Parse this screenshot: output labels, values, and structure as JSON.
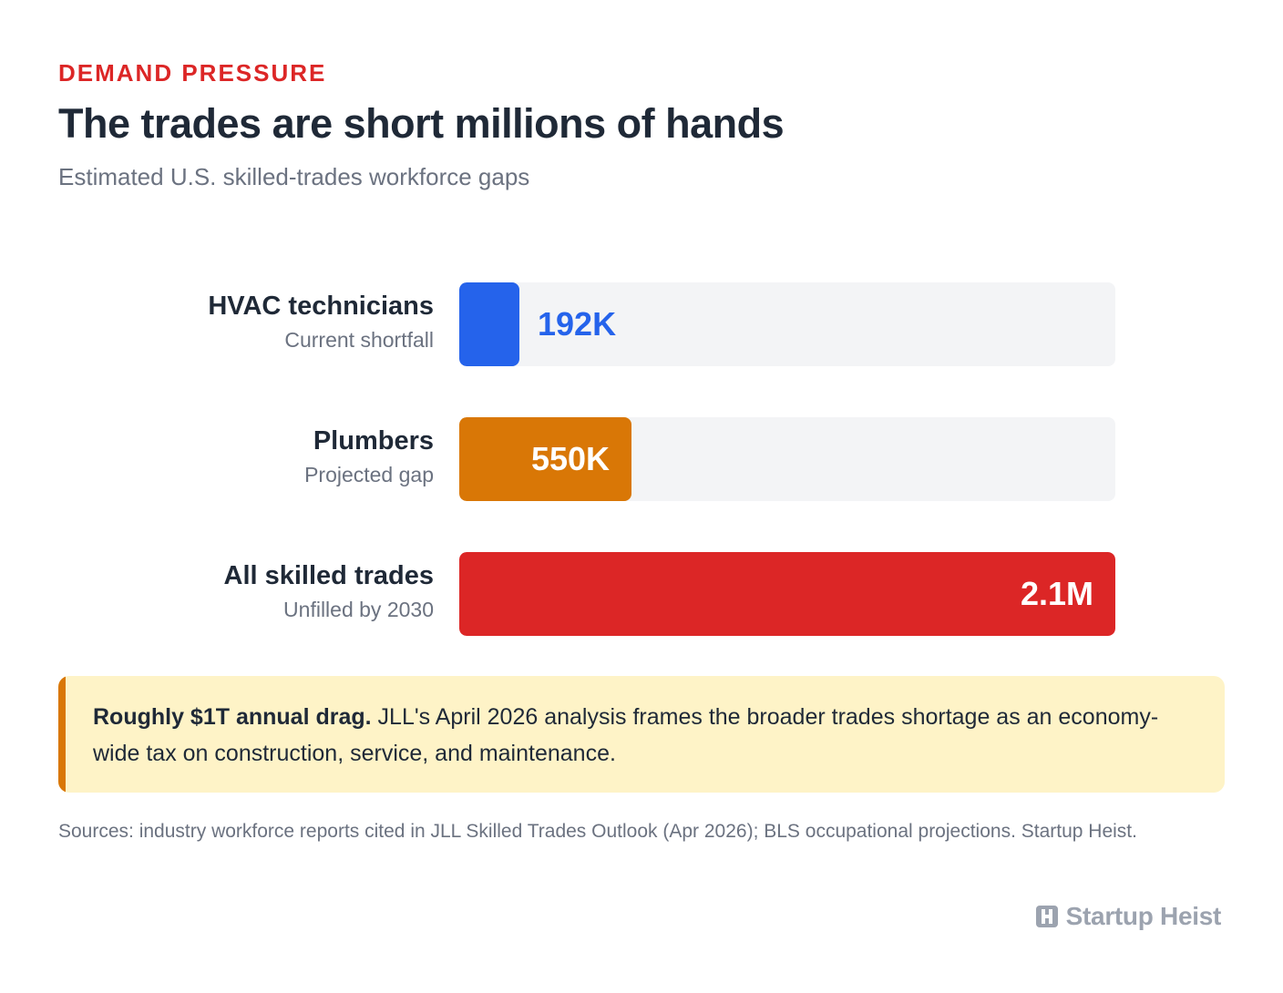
{
  "header": {
    "kicker": "DEMAND PRESSURE",
    "title": "The trades are short millions of hands",
    "subtitle": "Estimated U.S. skilled-trades workforce gaps"
  },
  "chart_data": {
    "type": "bar",
    "orientation": "horizontal",
    "title": "The trades are short millions of hands",
    "subtitle": "Estimated U.S. skilled-trades workforce gaps",
    "xlim": [
      0,
      2100000
    ],
    "grid": false,
    "categories": [
      "HVAC technicians",
      "Plumbers",
      "All skilled trades"
    ],
    "notes": [
      "Current shortfall",
      "Projected gap",
      "Unfilled by 2030"
    ],
    "values": [
      192000,
      550000,
      2100000
    ],
    "value_labels": [
      "192K",
      "550K",
      "2.1M"
    ],
    "colors": [
      "#2563eb",
      "#d97706",
      "#dc2626"
    ]
  },
  "callout": {
    "lead": "Roughly $1T annual drag.",
    "body": " JLL's April 2026 analysis frames the broader trades shortage as an economy-wide tax on construction, service, and maintenance."
  },
  "sources": "Sources: industry workforce reports cited in JLL Skilled Trades Outlook (Apr 2026); BLS occupational projections. Startup Heist.",
  "brand": {
    "name": "Startup Heist",
    "icon": "h-logo-icon"
  },
  "colors": {
    "kicker": "#dc2626",
    "track": "#f3f4f6",
    "callout_bg": "#fef3c7",
    "callout_accent": "#d97706"
  }
}
